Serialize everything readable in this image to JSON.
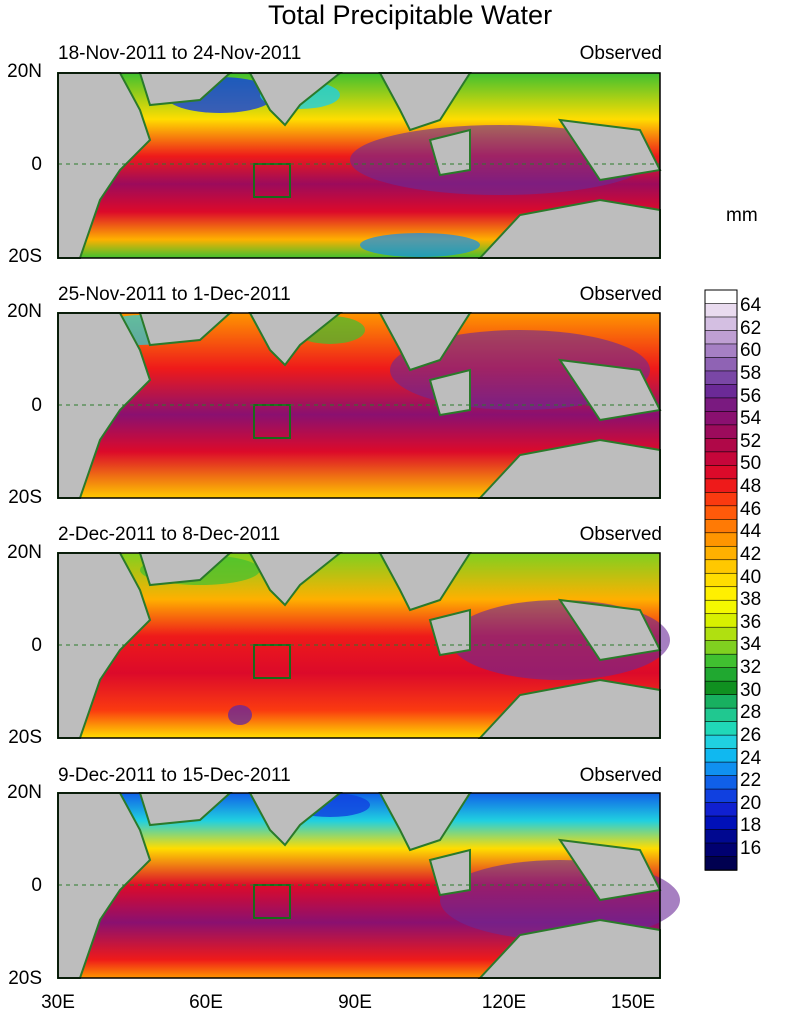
{
  "title": "Total Precipitable Water",
  "unit_label": "mm",
  "panels": [
    {
      "period": "18-Nov-2011 to 24-Nov-2011",
      "status": "Observed"
    },
    {
      "period": "25-Nov-2011 to 1-Dec-2011",
      "status": "Observed"
    },
    {
      "period": "2-Dec-2011 to 8-Dec-2011",
      "status": "Observed"
    },
    {
      "period": "9-Dec-2011 to 15-Dec-2011",
      "status": "Observed"
    }
  ],
  "lat_labels": [
    "20N",
    "0",
    "20S"
  ],
  "lon_labels": [
    "30E",
    "60E",
    "90E",
    "120E",
    "150E"
  ],
  "colorbar": {
    "labels": [
      "64",
      "62",
      "60",
      "58",
      "56",
      "54",
      "52",
      "50",
      "48",
      "46",
      "44",
      "42",
      "40",
      "38",
      "36",
      "34",
      "32",
      "30",
      "28",
      "26",
      "24",
      "22",
      "20",
      "18",
      "16"
    ],
    "colors_top_to_bottom": [
      "#ffffff",
      "#e9dbef",
      "#d4bfe2",
      "#bf9fd3",
      "#a680c4",
      "#8f63b4",
      "#7a47a6",
      "#6b2a97",
      "#7a1a80",
      "#8a1070",
      "#9c0b5c",
      "#b00848",
      "#c6063a",
      "#dc0a2a",
      "#ee1a1a",
      "#fa3a10",
      "#ff5a0a",
      "#ff7a05",
      "#ff9500",
      "#ffb000",
      "#ffc800",
      "#ffdd00",
      "#fff000",
      "#f4f800",
      "#d8f000",
      "#b0e010",
      "#80d020",
      "#40c030",
      "#20a830",
      "#109020",
      "#18b060",
      "#20c890",
      "#20d8b8",
      "#20d0e0",
      "#10b8f0",
      "#1090f0",
      "#1060e8",
      "#1040e0",
      "#1020d0",
      "#0010b8",
      "#000890",
      "#000070",
      "#000050"
    ]
  }
}
